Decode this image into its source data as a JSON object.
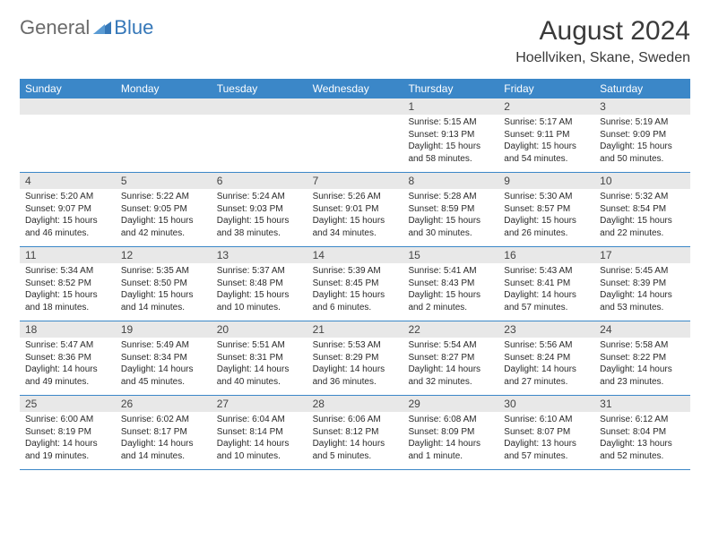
{
  "brand": {
    "text1": "General",
    "text2": "Blue",
    "triangle_color": "#3577b8"
  },
  "header": {
    "month_title": "August 2024",
    "location": "Hoellviken, Skane, Sweden"
  },
  "colors": {
    "header_bar": "#3b87c8",
    "row_divider": "#3b87c8",
    "daynum_bg": "#e8e8e8",
    "text": "#2a2a2a",
    "logo_gray": "#6a6a6a",
    "logo_blue": "#3577b8"
  },
  "days_of_week": [
    "Sunday",
    "Monday",
    "Tuesday",
    "Wednesday",
    "Thursday",
    "Friday",
    "Saturday"
  ],
  "weeks": [
    [
      {
        "n": "",
        "sunrise": "",
        "sunset": "",
        "daylight": ""
      },
      {
        "n": "",
        "sunrise": "",
        "sunset": "",
        "daylight": ""
      },
      {
        "n": "",
        "sunrise": "",
        "sunset": "",
        "daylight": ""
      },
      {
        "n": "",
        "sunrise": "",
        "sunset": "",
        "daylight": ""
      },
      {
        "n": "1",
        "sunrise": "Sunrise: 5:15 AM",
        "sunset": "Sunset: 9:13 PM",
        "daylight": "Daylight: 15 hours and 58 minutes."
      },
      {
        "n": "2",
        "sunrise": "Sunrise: 5:17 AM",
        "sunset": "Sunset: 9:11 PM",
        "daylight": "Daylight: 15 hours and 54 minutes."
      },
      {
        "n": "3",
        "sunrise": "Sunrise: 5:19 AM",
        "sunset": "Sunset: 9:09 PM",
        "daylight": "Daylight: 15 hours and 50 minutes."
      }
    ],
    [
      {
        "n": "4",
        "sunrise": "Sunrise: 5:20 AM",
        "sunset": "Sunset: 9:07 PM",
        "daylight": "Daylight: 15 hours and 46 minutes."
      },
      {
        "n": "5",
        "sunrise": "Sunrise: 5:22 AM",
        "sunset": "Sunset: 9:05 PM",
        "daylight": "Daylight: 15 hours and 42 minutes."
      },
      {
        "n": "6",
        "sunrise": "Sunrise: 5:24 AM",
        "sunset": "Sunset: 9:03 PM",
        "daylight": "Daylight: 15 hours and 38 minutes."
      },
      {
        "n": "7",
        "sunrise": "Sunrise: 5:26 AM",
        "sunset": "Sunset: 9:01 PM",
        "daylight": "Daylight: 15 hours and 34 minutes."
      },
      {
        "n": "8",
        "sunrise": "Sunrise: 5:28 AM",
        "sunset": "Sunset: 8:59 PM",
        "daylight": "Daylight: 15 hours and 30 minutes."
      },
      {
        "n": "9",
        "sunrise": "Sunrise: 5:30 AM",
        "sunset": "Sunset: 8:57 PM",
        "daylight": "Daylight: 15 hours and 26 minutes."
      },
      {
        "n": "10",
        "sunrise": "Sunrise: 5:32 AM",
        "sunset": "Sunset: 8:54 PM",
        "daylight": "Daylight: 15 hours and 22 minutes."
      }
    ],
    [
      {
        "n": "11",
        "sunrise": "Sunrise: 5:34 AM",
        "sunset": "Sunset: 8:52 PM",
        "daylight": "Daylight: 15 hours and 18 minutes."
      },
      {
        "n": "12",
        "sunrise": "Sunrise: 5:35 AM",
        "sunset": "Sunset: 8:50 PM",
        "daylight": "Daylight: 15 hours and 14 minutes."
      },
      {
        "n": "13",
        "sunrise": "Sunrise: 5:37 AM",
        "sunset": "Sunset: 8:48 PM",
        "daylight": "Daylight: 15 hours and 10 minutes."
      },
      {
        "n": "14",
        "sunrise": "Sunrise: 5:39 AM",
        "sunset": "Sunset: 8:45 PM",
        "daylight": "Daylight: 15 hours and 6 minutes."
      },
      {
        "n": "15",
        "sunrise": "Sunrise: 5:41 AM",
        "sunset": "Sunset: 8:43 PM",
        "daylight": "Daylight: 15 hours and 2 minutes."
      },
      {
        "n": "16",
        "sunrise": "Sunrise: 5:43 AM",
        "sunset": "Sunset: 8:41 PM",
        "daylight": "Daylight: 14 hours and 57 minutes."
      },
      {
        "n": "17",
        "sunrise": "Sunrise: 5:45 AM",
        "sunset": "Sunset: 8:39 PM",
        "daylight": "Daylight: 14 hours and 53 minutes."
      }
    ],
    [
      {
        "n": "18",
        "sunrise": "Sunrise: 5:47 AM",
        "sunset": "Sunset: 8:36 PM",
        "daylight": "Daylight: 14 hours and 49 minutes."
      },
      {
        "n": "19",
        "sunrise": "Sunrise: 5:49 AM",
        "sunset": "Sunset: 8:34 PM",
        "daylight": "Daylight: 14 hours and 45 minutes."
      },
      {
        "n": "20",
        "sunrise": "Sunrise: 5:51 AM",
        "sunset": "Sunset: 8:31 PM",
        "daylight": "Daylight: 14 hours and 40 minutes."
      },
      {
        "n": "21",
        "sunrise": "Sunrise: 5:53 AM",
        "sunset": "Sunset: 8:29 PM",
        "daylight": "Daylight: 14 hours and 36 minutes."
      },
      {
        "n": "22",
        "sunrise": "Sunrise: 5:54 AM",
        "sunset": "Sunset: 8:27 PM",
        "daylight": "Daylight: 14 hours and 32 minutes."
      },
      {
        "n": "23",
        "sunrise": "Sunrise: 5:56 AM",
        "sunset": "Sunset: 8:24 PM",
        "daylight": "Daylight: 14 hours and 27 minutes."
      },
      {
        "n": "24",
        "sunrise": "Sunrise: 5:58 AM",
        "sunset": "Sunset: 8:22 PM",
        "daylight": "Daylight: 14 hours and 23 minutes."
      }
    ],
    [
      {
        "n": "25",
        "sunrise": "Sunrise: 6:00 AM",
        "sunset": "Sunset: 8:19 PM",
        "daylight": "Daylight: 14 hours and 19 minutes."
      },
      {
        "n": "26",
        "sunrise": "Sunrise: 6:02 AM",
        "sunset": "Sunset: 8:17 PM",
        "daylight": "Daylight: 14 hours and 14 minutes."
      },
      {
        "n": "27",
        "sunrise": "Sunrise: 6:04 AM",
        "sunset": "Sunset: 8:14 PM",
        "daylight": "Daylight: 14 hours and 10 minutes."
      },
      {
        "n": "28",
        "sunrise": "Sunrise: 6:06 AM",
        "sunset": "Sunset: 8:12 PM",
        "daylight": "Daylight: 14 hours and 5 minutes."
      },
      {
        "n": "29",
        "sunrise": "Sunrise: 6:08 AM",
        "sunset": "Sunset: 8:09 PM",
        "daylight": "Daylight: 14 hours and 1 minute."
      },
      {
        "n": "30",
        "sunrise": "Sunrise: 6:10 AM",
        "sunset": "Sunset: 8:07 PM",
        "daylight": "Daylight: 13 hours and 57 minutes."
      },
      {
        "n": "31",
        "sunrise": "Sunrise: 6:12 AM",
        "sunset": "Sunset: 8:04 PM",
        "daylight": "Daylight: 13 hours and 52 minutes."
      }
    ]
  ]
}
